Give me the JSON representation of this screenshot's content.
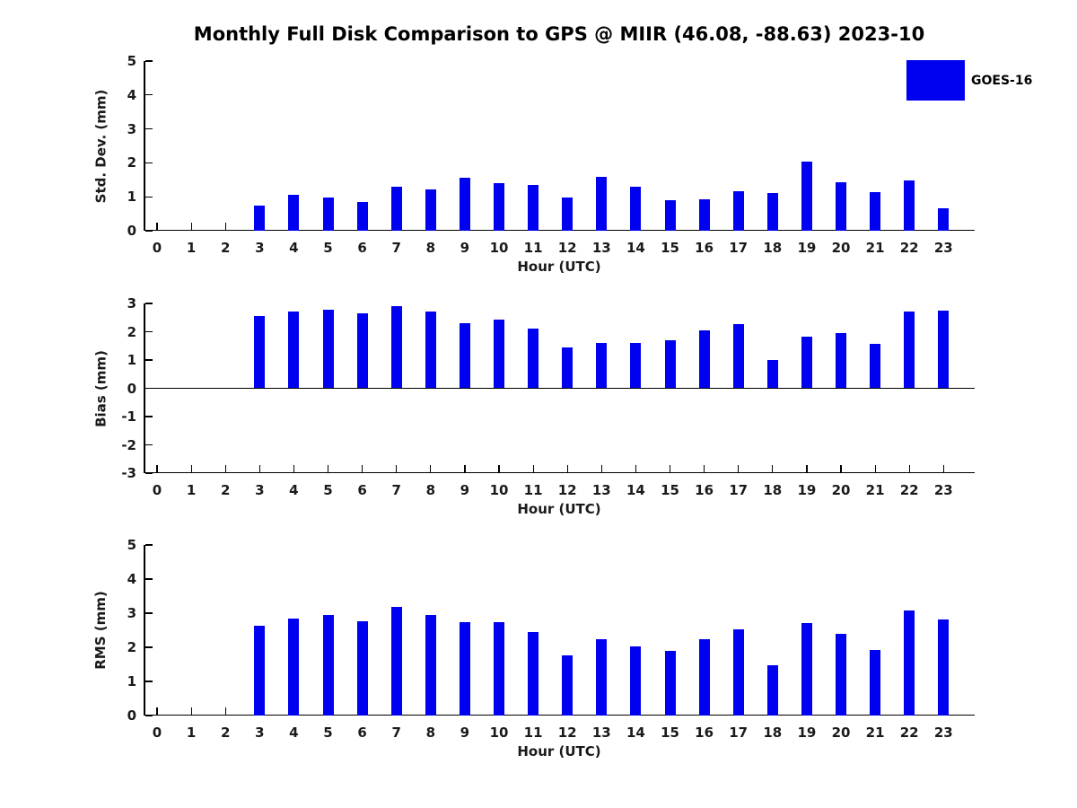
{
  "title": "Monthly Full Disk Comparison to GPS @ MIIR (46.08, -88.63) 2023-10",
  "legend": {
    "label": "GOES-16",
    "color": "#0000f0"
  },
  "chart_data": [
    {
      "type": "bar",
      "panel": "std-dev",
      "ylabel": "Std. Dev. (mm)",
      "xlabel": "Hour (UTC)",
      "ylim": [
        0,
        5
      ],
      "yticks": [
        0,
        1,
        2,
        3,
        4,
        5
      ],
      "grid": false,
      "categories": [
        0,
        1,
        2,
        3,
        4,
        5,
        6,
        7,
        8,
        9,
        10,
        11,
        12,
        13,
        14,
        15,
        16,
        17,
        18,
        19,
        20,
        21,
        22,
        23
      ],
      "series": [
        {
          "name": "GOES-16",
          "color": "#0000f0",
          "values": [
            null,
            null,
            null,
            0.75,
            1.06,
            0.99,
            0.84,
            1.29,
            1.22,
            1.56,
            1.39,
            1.34,
            0.99,
            1.58,
            1.3,
            0.91,
            0.92,
            1.16,
            1.12,
            2.03,
            1.42,
            1.15,
            1.47,
            0.66
          ]
        }
      ]
    },
    {
      "type": "bar",
      "panel": "bias",
      "ylabel": "Bias (mm)",
      "xlabel": "Hour (UTC)",
      "ylim": [
        -3,
        3
      ],
      "yticks": [
        3,
        2,
        1,
        0,
        -1,
        -2,
        -3
      ],
      "grid": false,
      "categories": [
        0,
        1,
        2,
        3,
        4,
        5,
        6,
        7,
        8,
        9,
        10,
        11,
        12,
        13,
        14,
        15,
        16,
        17,
        18,
        19,
        20,
        21,
        22,
        23
      ],
      "series": [
        {
          "name": "GOES-16",
          "color": "#0000f0",
          "values": [
            null,
            null,
            null,
            2.56,
            2.7,
            2.78,
            2.66,
            2.92,
            2.72,
            2.3,
            2.42,
            2.12,
            1.45,
            1.61,
            1.61,
            1.71,
            2.06,
            2.27,
            1.01,
            1.83,
            1.95,
            1.58,
            2.71,
            2.76
          ]
        }
      ]
    },
    {
      "type": "bar",
      "panel": "rms",
      "ylabel": "RMS (mm)",
      "xlabel": "Hour (UTC)",
      "ylim": [
        0,
        5
      ],
      "yticks": [
        0,
        1,
        2,
        3,
        4,
        5
      ],
      "grid": false,
      "categories": [
        0,
        1,
        2,
        3,
        4,
        5,
        6,
        7,
        8,
        9,
        10,
        11,
        12,
        13,
        14,
        15,
        16,
        17,
        18,
        19,
        20,
        21,
        22,
        23
      ],
      "series": [
        {
          "name": "GOES-16",
          "color": "#0000f0",
          "values": [
            null,
            null,
            null,
            2.63,
            2.85,
            2.94,
            2.76,
            3.18,
            2.96,
            2.73,
            2.75,
            2.46,
            1.77,
            2.23,
            2.03,
            1.89,
            2.24,
            2.52,
            1.48,
            2.71,
            2.39,
            1.93,
            3.07,
            2.82
          ]
        }
      ]
    }
  ]
}
